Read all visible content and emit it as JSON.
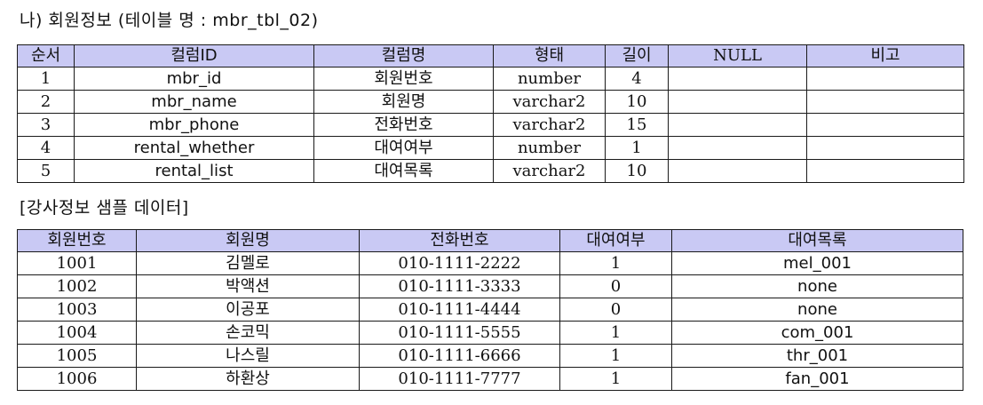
{
  "section1": {
    "heading": "나) 회원정보 (테이블 명 : mbr_tbl_02)",
    "columns": [
      "순서",
      "컬럼ID",
      "컬럼명",
      "형태",
      "길이",
      "NULL",
      "비고"
    ],
    "rows": [
      [
        "1",
        "mbr_id",
        "회원번호",
        "number",
        "4",
        "",
        ""
      ],
      [
        "2",
        "mbr_name",
        "회원명",
        "varchar2",
        "10",
        "",
        ""
      ],
      [
        "3",
        "mbr_phone",
        "전화번호",
        "varchar2",
        "15",
        "",
        ""
      ],
      [
        "4",
        "rental_whether",
        "대여여부",
        "number",
        "1",
        "",
        ""
      ],
      [
        "5",
        "rental_list",
        "대여목록",
        "varchar2",
        "10",
        "",
        ""
      ]
    ]
  },
  "section2": {
    "heading": "[강사정보 샘플 데이터]",
    "columns": [
      "회원번호",
      "회원명",
      "전화번호",
      "대여여부",
      "대여목록"
    ],
    "rows": [
      [
        "1001",
        "김멜로",
        "010-1111-2222",
        "1",
        "mel_001"
      ],
      [
        "1002",
        "박액션",
        "010-1111-3333",
        "0",
        "none"
      ],
      [
        "1003",
        "이공포",
        "010-1111-4444",
        "0",
        "none"
      ],
      [
        "1004",
        "손코믹",
        "010-1111-5555",
        "1",
        "com_001"
      ],
      [
        "1005",
        "나스릴",
        "010-1111-6666",
        "1",
        "thr_001"
      ],
      [
        "1006",
        "하환상",
        "010-1111-7777",
        "1",
        "fan_001"
      ]
    ]
  }
}
